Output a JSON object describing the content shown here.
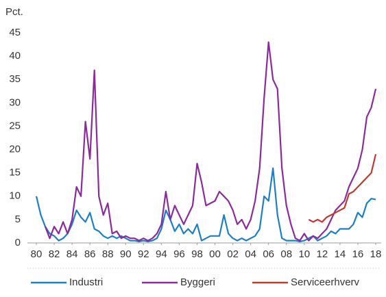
{
  "chart_data": {
    "type": "line",
    "y_label": "Pct.",
    "x": [
      1980,
      1980.5,
      1981,
      1981.5,
      1982,
      1982.5,
      1983,
      1983.5,
      1984,
      1984.5,
      1985,
      1985.5,
      1986,
      1986.5,
      1987,
      1987.5,
      1988,
      1988.5,
      1989,
      1989.5,
      1990,
      1990.5,
      1991,
      1991.5,
      1992,
      1992.5,
      1993,
      1993.5,
      1994,
      1994.5,
      1995,
      1995.5,
      1996,
      1996.5,
      1997,
      1997.5,
      1998,
      1998.5,
      1999,
      1999.5,
      2000,
      2000.5,
      2001,
      2001.5,
      2002,
      2002.5,
      2003,
      2003.5,
      2004,
      2004.5,
      2005,
      2005.5,
      2006,
      2006.5,
      2007,
      2007.5,
      2008,
      2008.5,
      2009,
      2009.5,
      2010,
      2010.5,
      2011,
      2011.5,
      2012,
      2012.5,
      2013,
      2013.5,
      2014,
      2014.5,
      2015,
      2015.5,
      2016,
      2016.5,
      2017,
      2017.5,
      2018
    ],
    "series": [
      {
        "name": "Industri",
        "color": "#1a7fc8",
        "values": [
          10,
          6,
          3.5,
          2,
          1.5,
          0.5,
          1,
          2,
          4,
          7,
          5.5,
          4.5,
          6.5,
          3,
          2.5,
          1.5,
          1,
          1.5,
          1,
          1.5,
          1,
          0.5,
          0.5,
          0.3,
          0.5,
          0.3,
          0.5,
          1,
          3,
          7,
          5,
          2.5,
          4,
          2,
          3,
          2,
          4,
          0.5,
          1,
          1.5,
          1.5,
          1.5,
          6,
          2,
          1,
          0.5,
          1,
          0.5,
          1,
          1.5,
          3,
          10,
          9,
          16,
          6,
          1,
          0.5,
          0.5,
          0.5,
          0.3,
          0.5,
          1,
          1.5,
          0.5,
          1,
          1.5,
          2.5,
          2,
          3,
          3,
          3,
          4,
          6.5,
          5.5,
          8.5,
          9.5,
          9.3
        ]
      },
      {
        "name": "Byggeri",
        "color": "#8b2a9b",
        "values": [
          null,
          null,
          3.5,
          1,
          3.5,
          2,
          4.5,
          2,
          5,
          12,
          10,
          26,
          18,
          37,
          10,
          6,
          8.5,
          2,
          2.5,
          1,
          1.5,
          1,
          1,
          0.5,
          1,
          0.5,
          1,
          2,
          4,
          11,
          5,
          8,
          6,
          4,
          6,
          8,
          17,
          13,
          8,
          8.5,
          9,
          11,
          10,
          9,
          7,
          4,
          5,
          3,
          5,
          9,
          16,
          31,
          43,
          35,
          33,
          16,
          8,
          4,
          1,
          0.5,
          2,
          0.5,
          1.5,
          1,
          2,
          3,
          5,
          7,
          8,
          9,
          12,
          14,
          16,
          20,
          27,
          29,
          33
        ]
      },
      {
        "name": "Serviceerhverv",
        "color": "#c0392b",
        "values": [
          null,
          null,
          null,
          null,
          null,
          null,
          null,
          null,
          null,
          null,
          null,
          null,
          null,
          null,
          null,
          null,
          null,
          null,
          null,
          null,
          null,
          null,
          null,
          null,
          null,
          null,
          null,
          null,
          null,
          null,
          null,
          null,
          null,
          null,
          null,
          null,
          null,
          null,
          null,
          null,
          null,
          null,
          null,
          null,
          null,
          null,
          null,
          null,
          null,
          null,
          null,
          null,
          null,
          null,
          null,
          null,
          null,
          null,
          null,
          null,
          null,
          5,
          4.5,
          5,
          4.5,
          5.5,
          6,
          6.5,
          7,
          7.5,
          10.5,
          11,
          12,
          13,
          14,
          15,
          19
        ]
      }
    ],
    "xlim": [
      1980,
      2018
    ],
    "ylim": [
      0,
      45
    ],
    "xticks": [
      {
        "value": 1980,
        "label": "80"
      },
      {
        "value": 1982,
        "label": "82"
      },
      {
        "value": 1984,
        "label": "84"
      },
      {
        "value": 1986,
        "label": "86"
      },
      {
        "value": 1988,
        "label": "88"
      },
      {
        "value": 1990,
        "label": "90"
      },
      {
        "value": 1992,
        "label": "92"
      },
      {
        "value": 1994,
        "label": "94"
      },
      {
        "value": 1996,
        "label": "96"
      },
      {
        "value": 1998,
        "label": "98"
      },
      {
        "value": 2000,
        "label": "00"
      },
      {
        "value": 2002,
        "label": "02"
      },
      {
        "value": 2004,
        "label": "04"
      },
      {
        "value": 2006,
        "label": "06"
      },
      {
        "value": 2008,
        "label": "08"
      },
      {
        "value": 2010,
        "label": "10"
      },
      {
        "value": 2012,
        "label": "12"
      },
      {
        "value": 2014,
        "label": "14"
      },
      {
        "value": 2016,
        "label": "16"
      },
      {
        "value": 2018,
        "label": "18"
      }
    ],
    "yticks": [
      0,
      5,
      10,
      15,
      20,
      25,
      30,
      35,
      40,
      45
    ],
    "grid": false,
    "legend": "bottom"
  }
}
